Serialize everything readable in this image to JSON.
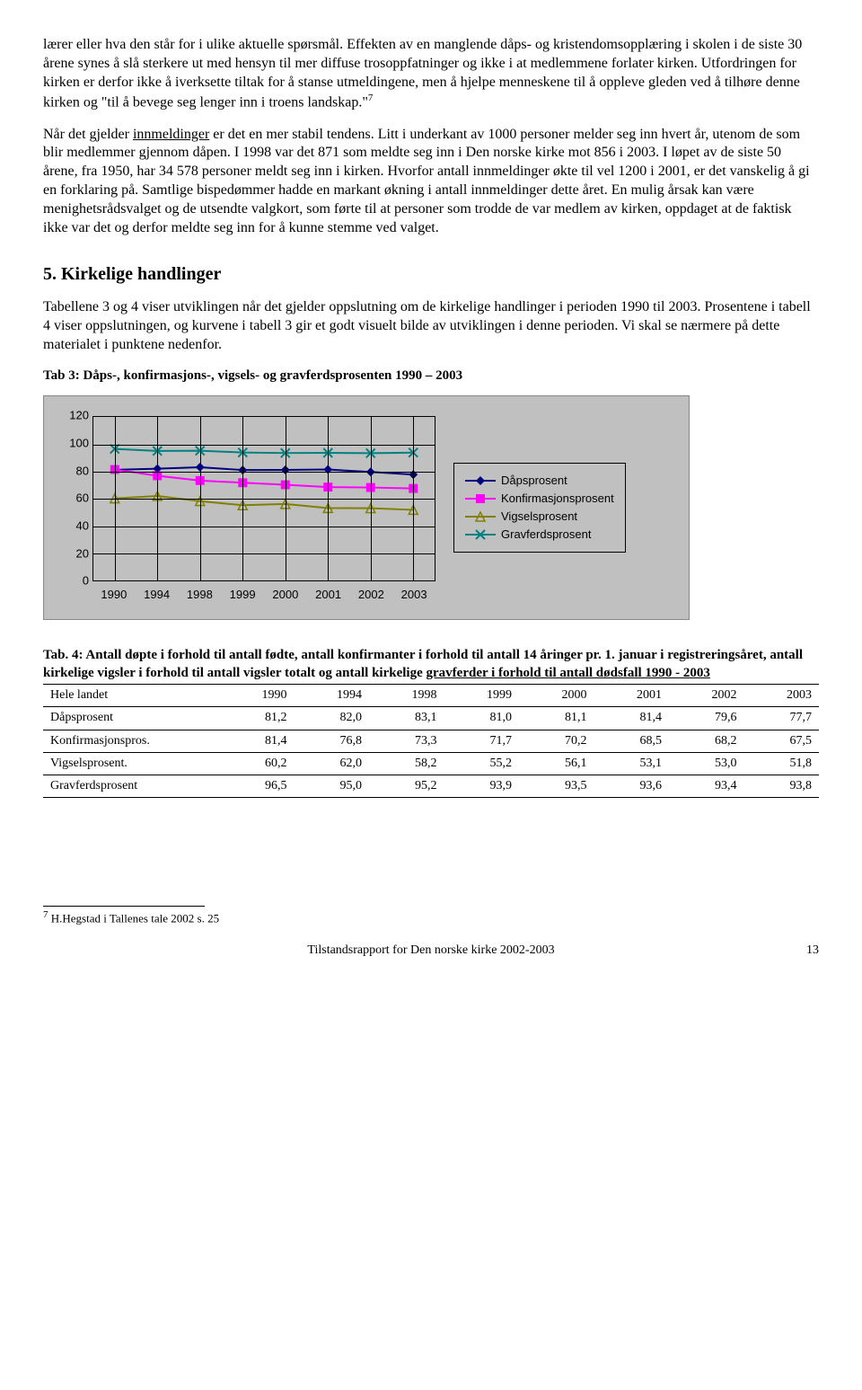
{
  "para1_pre": "lærer eller hva den står for i ulike aktuelle spørsmål. Effekten av en manglende dåps- og kristendomsopplæring i skolen i de siste 30 årene synes å slå sterkere ut med hensyn til mer diffuse trosoppfatninger og ikke i at medlemmene forlater kirken. Utfordringen for kirken er derfor ikke å iverksette tiltak for å stanse utmeldingene, men å hjelpe menneskene til å oppleve gleden ved å tilhøre denne kirken og \"til  å bevege seg lenger inn i troens landskap.\"",
  "fn_mark1": "7",
  "para2_a": "Når det gjelder ",
  "para2_u": "innmeldinger",
  "para2_b": " er det en mer stabil tendens. Litt i underkant av 1000 personer melder seg inn hvert år, utenom de som blir medlemmer gjennom dåpen. I 1998 var det 871 som meldte seg inn i Den norske kirke mot 856 i 2003. I løpet av de siste 50 årene, fra 1950, har 34 578 personer meldt seg inn i kirken. Hvorfor antall innmeldinger økte til vel 1200 i 2001, er det vanskelig å gi en forklaring på. Samtlige bispedømmer hadde en markant økning i antall innmeldinger dette året. En mulig årsak kan være menighetsrådsvalget og de utsendte valgkort, som førte til at personer som trodde de var medlem av kirken, oppdaget at de faktisk ikke var det og derfor meldte seg inn for å kunne stemme ved valget.",
  "section_title": "5. Kirkelige handlinger",
  "para3": "Tabellene 3 og 4 viser utviklingen når det gjelder oppslutning om de kirkelige handlinger i perioden 1990 til 2003. Prosentene i tabell 4 viser oppslutningen, og kurvene i tabell 3 gir et godt visuelt bilde av utviklingen i denne perioden. Vi skal se nærmere på dette materialet i punktene nedenfor.",
  "tab3_title": "Tab 3: Dåps-, konfirmasjons-, vigsels- og gravferdsprosenten 1990 – 2003",
  "chart": {
    "type": "line",
    "categories": [
      "1990",
      "1994",
      "1998",
      "1999",
      "2000",
      "2001",
      "2002",
      "2003"
    ],
    "ylim": [
      0,
      120
    ],
    "ytick_step": 20,
    "background_color": "#c0c0c0",
    "grid_color": "#000000",
    "series": [
      {
        "name": "Dåpsprosent",
        "color": "#000080",
        "marker": "diamond",
        "values": [
          81.2,
          82.0,
          83.1,
          81.0,
          81.1,
          81.4,
          79.6,
          77.7
        ]
      },
      {
        "name": "Konfirmasjonsprosent",
        "color": "#ff00ff",
        "marker": "square",
        "values": [
          81.4,
          76.8,
          73.3,
          71.7,
          70.2,
          68.5,
          68.2,
          67.5
        ]
      },
      {
        "name": "Vigselsprosent",
        "color": "#808000",
        "marker": "triangle",
        "values": [
          60.2,
          62.0,
          58.2,
          55.2,
          56.1,
          53.1,
          53.0,
          51.8
        ]
      },
      {
        "name": "Gravferdsprosent",
        "color": "#008080",
        "marker": "x",
        "values": [
          96.5,
          95.0,
          95.2,
          93.9,
          93.5,
          93.6,
          93.4,
          93.8
        ]
      }
    ]
  },
  "tab4_title_a": "Tab. 4: Antall døpte i forhold til antall fødte, antall konfirmanter i forhold til antall 14 åringer pr. 1. januar i registreringsåret, antall kirkelige vigsler i forhold til antall vigsler totalt og antall kirkelige ",
  "tab4_title_u": "gravferder i forhold til antall dødsfall 1990 - 2003",
  "table": {
    "head_label": "Hele landet",
    "years": [
      "1990",
      "1994",
      "1998",
      "1999",
      "2000",
      "2001",
      "2002",
      "2003"
    ],
    "rows": [
      {
        "label": "Dåpsprosent",
        "cells": [
          "81,2",
          "82,0",
          "83,1",
          "81,0",
          "81,1",
          "81,4",
          "79,6",
          "77,7"
        ]
      },
      {
        "label": "Konfirmasjonspros.",
        "cells": [
          "81,4",
          "76,8",
          "73,3",
          "71,7",
          "70,2",
          "68,5",
          "68,2",
          "67,5"
        ]
      },
      {
        "label": "Vigselsprosent.",
        "cells": [
          "60,2",
          "62,0",
          "58,2",
          "55,2",
          "56,1",
          "53,1",
          "53,0",
          "51,8"
        ]
      },
      {
        "label": "Gravferdsprosent",
        "cells": [
          "96,5",
          "95,0",
          "95,2",
          "93,9",
          "93,5",
          "93,6",
          "93,4",
          "93,8"
        ]
      }
    ]
  },
  "footnote_mark": "7",
  "footnote_text": " H.Hegstad i Tallenes tale 2002 s. 25",
  "footer_text": "Tilstandsrapport for Den norske kirke 2002-2003",
  "page_number": "13"
}
